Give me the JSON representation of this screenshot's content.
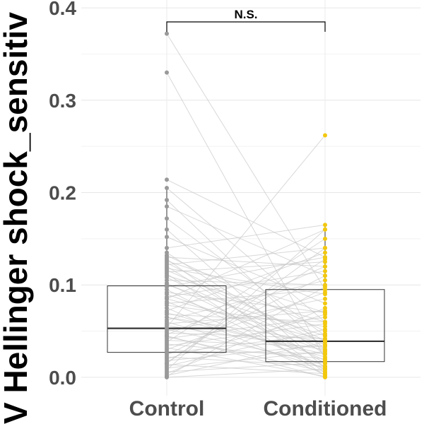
{
  "chart_data": {
    "type": "box-paired",
    "ylabel": "V Hellinger  shock_sensitiv",
    "ylim": [
      -0.01,
      0.41
    ],
    "yticks": [
      0.0,
      0.1,
      0.2,
      0.3,
      0.4
    ],
    "ytick_labels": [
      "0.0",
      "0.1",
      "0.2",
      "0.3",
      "0.4"
    ],
    "categories": [
      "Control",
      "Conditioned"
    ],
    "boxes": [
      {
        "name": "Control",
        "q1": 0.027,
        "median": 0.053,
        "q3": 0.099,
        "whisker_low": 0.0,
        "whisker_high": 0.205,
        "color": "#999999"
      },
      {
        "name": "Conditioned",
        "q1": 0.017,
        "median": 0.039,
        "q3": 0.095,
        "whisker_low": 0.0,
        "whisker_high": 0.167,
        "color": "#f2c80f"
      }
    ],
    "significance": {
      "label": "N.S.",
      "y": 0.39
    },
    "pairs": [
      [
        0.372,
        0.095
      ],
      [
        0.33,
        0.02
      ],
      [
        0.214,
        0.13
      ],
      [
        0.205,
        0.06
      ],
      [
        0.192,
        0.03
      ],
      [
        0.185,
        0.11
      ],
      [
        0.172,
        0.045
      ],
      [
        0.16,
        0.01
      ],
      [
        0.152,
        0.08
      ],
      [
        0.14,
        0.165
      ],
      [
        0.135,
        0.025
      ],
      [
        0.132,
        0.05
      ],
      [
        0.13,
        0.12
      ],
      [
        0.128,
        0.005
      ],
      [
        0.126,
        0.07
      ],
      [
        0.124,
        0.035
      ],
      [
        0.122,
        0.14
      ],
      [
        0.12,
        0.015
      ],
      [
        0.118,
        0.09
      ],
      [
        0.116,
        0.04
      ],
      [
        0.114,
        0.125
      ],
      [
        0.112,
        0.002
      ],
      [
        0.11,
        0.06
      ],
      [
        0.108,
        0.03
      ],
      [
        0.105,
        0.1
      ],
      [
        0.102,
        0.018
      ],
      [
        0.1,
        0.045
      ],
      [
        0.098,
        0.13
      ],
      [
        0.095,
        0.008
      ],
      [
        0.092,
        0.07
      ],
      [
        0.09,
        0.028
      ],
      [
        0.087,
        0.115
      ],
      [
        0.085,
        0.04
      ],
      [
        0.082,
        0.012
      ],
      [
        0.08,
        0.095
      ],
      [
        0.078,
        0.055
      ],
      [
        0.075,
        0.003
      ],
      [
        0.072,
        0.135
      ],
      [
        0.07,
        0.022
      ],
      [
        0.068,
        0.06
      ],
      [
        0.065,
        0.038
      ],
      [
        0.062,
        0.105
      ],
      [
        0.06,
        0.01
      ],
      [
        0.058,
        0.072
      ],
      [
        0.056,
        0.03
      ],
      [
        0.054,
        0.262
      ],
      [
        0.052,
        0.015
      ],
      [
        0.05,
        0.085
      ],
      [
        0.048,
        0.042
      ],
      [
        0.046,
        0.12
      ],
      [
        0.044,
        0.006
      ],
      [
        0.042,
        0.065
      ],
      [
        0.04,
        0.033
      ],
      [
        0.038,
        0.15
      ],
      [
        0.036,
        0.02
      ],
      [
        0.034,
        0.058
      ],
      [
        0.032,
        0.001
      ],
      [
        0.03,
        0.092
      ],
      [
        0.028,
        0.026
      ],
      [
        0.026,
        0.047
      ],
      [
        0.024,
        0.11
      ],
      [
        0.022,
        0.012
      ],
      [
        0.02,
        0.068
      ],
      [
        0.018,
        0.035
      ],
      [
        0.016,
        0.128
      ],
      [
        0.014,
        0.004
      ],
      [
        0.012,
        0.052
      ],
      [
        0.01,
        0.028
      ],
      [
        0.008,
        0.16
      ],
      [
        0.006,
        0.016
      ],
      [
        0.004,
        0.075
      ],
      [
        0.002,
        0.038
      ],
      [
        0.001,
        0.098
      ],
      [
        0.0,
        0.009
      ],
      [
        0.015,
        0.14
      ],
      [
        0.045,
        0.0
      ],
      [
        0.065,
        0.025
      ],
      [
        0.085,
        0.16
      ]
    ]
  }
}
